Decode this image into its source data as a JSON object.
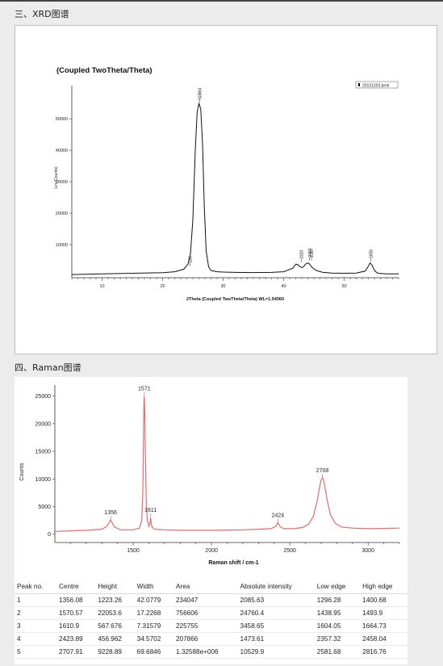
{
  "sections": {
    "xrd_title": "三、XRD图谱",
    "raman_title": "四、Raman图谱"
  },
  "chart_data": [
    {
      "type": "line",
      "title": "(Coupled TwoTheta/Theta)",
      "xlabel": "2Theta (Coupled TwoTheta/Theta) WL=1.54060",
      "ylabel": "Lin (Counts)",
      "legend": "20151203.brml",
      "legend_position": "top-right",
      "xlim": [
        5,
        59
      ],
      "ylim": [
        -500,
        58000
      ],
      "x_ticks": [
        10,
        20,
        30,
        40,
        50
      ],
      "y_ticks": [
        10000,
        20000,
        30000,
        40000,
        50000
      ],
      "grid": false,
      "series": [
        {
          "x": [
            5,
            10,
            15,
            20,
            22,
            23.5,
            24.2,
            24.6,
            25.0,
            25.4,
            25.7,
            26.0,
            26.3,
            26.6,
            26.9,
            27.2,
            27.6,
            28.0,
            29,
            30,
            32,
            35,
            38,
            40,
            41.5,
            42.0,
            42.4,
            42.7,
            43.0,
            43.3,
            43.6,
            44.0,
            44.3,
            44.6,
            45.0,
            45.5,
            46.5,
            48,
            50,
            52,
            53.5,
            54.0,
            54.3,
            54.6,
            54.9,
            55.2,
            55.6,
            56.2,
            57,
            59
          ],
          "y": [
            500,
            700,
            900,
            1100,
            1400,
            2200,
            3800,
            7000,
            18000,
            40000,
            52000,
            55000,
            53000,
            42000,
            22000,
            8000,
            3000,
            1800,
            1400,
            1300,
            1200,
            1150,
            1200,
            1400,
            2500,
            3800,
            3600,
            3000,
            2700,
            3000,
            3800,
            4200,
            3800,
            3000,
            2300,
            1700,
            1200,
            1000,
            900,
            1000,
            1600,
            3200,
            4200,
            3500,
            2200,
            1400,
            900,
            800,
            700,
            700
          ]
        }
      ],
      "peak_labels": [
        {
          "x": 24.5,
          "y": 3200,
          "label": "186"
        },
        {
          "x": 26.1,
          "y": 55200,
          "label": "50884"
        },
        {
          "x": 42.9,
          "y": 4400,
          "label": "1920"
        },
        {
          "x": 44.3,
          "y": 5000,
          "label": "2487"
        },
        {
          "x": 44.6,
          "y": 5000,
          "label": "2397"
        },
        {
          "x": 54.4,
          "y": 4600,
          "label": "1650"
        }
      ]
    },
    {
      "type": "line",
      "title": "",
      "xlabel": "Raman shift / cm-1",
      "ylabel": "Counts",
      "xlim": [
        1000,
        3200
      ],
      "ylim": [
        -1500,
        27000
      ],
      "x_ticks": [
        1500,
        2000,
        2500,
        3000
      ],
      "y_ticks": [
        0,
        5000,
        10000,
        15000,
        20000,
        25000
      ],
      "grid": false,
      "color": "#e86a6a",
      "series": [
        {
          "x": [
            1000,
            1100,
            1200,
            1300,
            1330,
            1345,
            1356,
            1367,
            1380,
            1420,
            1500,
            1540,
            1555,
            1562,
            1566,
            1569,
            1571,
            1574,
            1578,
            1583,
            1590,
            1600,
            1606,
            1611,
            1616,
            1622,
            1640,
            1700,
            1800,
            1900,
            2000,
            2100,
            2200,
            2300,
            2380,
            2410,
            2424,
            2438,
            2460,
            2520,
            2580,
            2620,
            2650,
            2675,
            2692,
            2700,
            2708,
            2716,
            2724,
            2740,
            2760,
            2790,
            2830,
            2900,
            3000,
            3100,
            3200
          ],
          "y": [
            500,
            600,
            700,
            900,
            1400,
            2000,
            2600,
            2000,
            1300,
            800,
            800,
            1100,
            2500,
            8000,
            18000,
            24000,
            25000,
            22000,
            14000,
            6500,
            2500,
            1400,
            1800,
            3000,
            1800,
            1200,
            900,
            800,
            700,
            700,
            700,
            750,
            800,
            900,
            1000,
            1400,
            2100,
            1400,
            1000,
            1000,
            1200,
            1800,
            3200,
            6000,
            8800,
            9800,
            10200,
            9800,
            8600,
            6000,
            3500,
            2000,
            1300,
            1100,
            1000,
            1050,
            1100
          ]
        }
      ],
      "peak_labels": [
        {
          "x": 1356,
          "y": 2600,
          "label": "1356"
        },
        {
          "x": 1571,
          "y": 25000,
          "label": "1571"
        },
        {
          "x": 1611,
          "y": 3000,
          "label": "1611"
        },
        {
          "x": 2424,
          "y": 2100,
          "label": "2424"
        },
        {
          "x": 2708,
          "y": 10200,
          "label": "2708"
        }
      ]
    }
  ],
  "peak_table": {
    "headers": [
      "Peak no.",
      "Centre",
      "Height",
      "Width",
      "Area",
      "Absolute intensity",
      "Low edge",
      "High edge"
    ],
    "rows": [
      [
        "1",
        "1356.08",
        "1223.26",
        "42.0779",
        "234047",
        "2085.63",
        "1296.28",
        "1400.68"
      ],
      [
        "2",
        "1570.57",
        "22053.6",
        "17.2268",
        "756606",
        "24760.4",
        "1438.95",
        "1493.9"
      ],
      [
        "3",
        "1610.9",
        "567.676",
        "7.31579",
        "225755",
        "3458.65",
        "1604.05",
        "1664.73"
      ],
      [
        "4",
        "2423.89",
        "456.962",
        "34.5702",
        "207866",
        "1473.61",
        "2357.32",
        "2458.04"
      ],
      [
        "5",
        "2707.91",
        "9228.89",
        "69.6846",
        "1.32588e+006",
        "10529.9",
        "2581.68",
        "2816.76"
      ]
    ]
  }
}
